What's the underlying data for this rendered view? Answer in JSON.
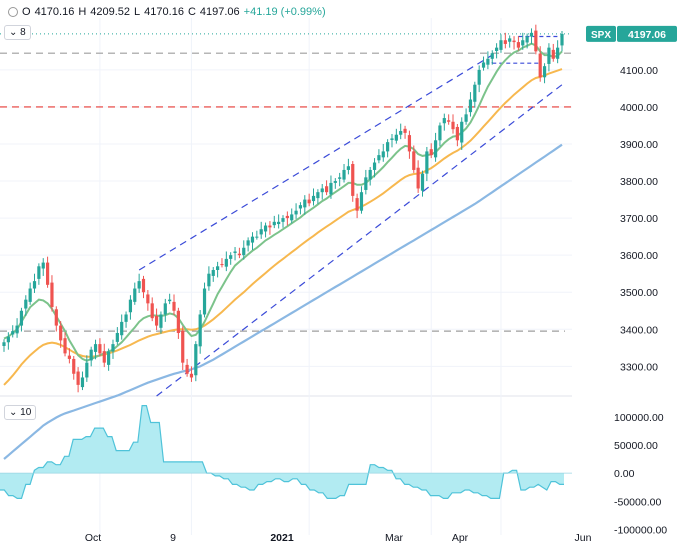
{
  "header": {
    "open_label": "O",
    "open": "4170.16",
    "high_label": "H",
    "high": "4209.52",
    "low_label": "L",
    "low": "4170.16",
    "close_label": "C",
    "close": "4197.06",
    "change": "+41.19 (+0.99%)"
  },
  "indicator_badges": {
    "top": "8",
    "bottom": "10"
  },
  "price_tag": {
    "symbol": "SPX",
    "value": "4197.06"
  },
  "colors": {
    "up": "#26a69a",
    "down": "#ef5350",
    "ma_green": "#7cc38b",
    "ma_orange": "#f7b84f",
    "ma_blue": "#8bb8e3",
    "channel": "#3b4bd8",
    "support_red": "#e53935",
    "level_gray": "#9e9e9e",
    "osc_fill": "#b2ebf2",
    "osc_line": "#4fc3d9"
  },
  "chart_data": [
    {
      "type": "candlestick",
      "series_name": "SPX",
      "y_ticks": [
        3300,
        3400,
        3500,
        3600,
        3700,
        3800,
        3900,
        4000,
        4100
      ],
      "y_tick_labels": [
        "3300.00",
        "3400.00",
        "3500.00",
        "3600.00",
        "3700.00",
        "3800.00",
        "3900.00",
        "4000.00",
        "4100.00"
      ],
      "x_tick_labels": [
        "Oct",
        "9",
        "2021",
        "Mar",
        "Apr",
        "Jun"
      ],
      "ylim": [
        3220,
        4240
      ],
      "last_price": 4197.06,
      "horizontal_levels": [
        {
          "value": 4145,
          "style": "dashed",
          "color": "gray"
        },
        {
          "value": 4000,
          "style": "dashed",
          "color": "red"
        },
        {
          "value": 3395,
          "style": "dashed",
          "color": "gray"
        }
      ],
      "closes": [
        3365,
        3380,
        3395,
        3410,
        3450,
        3480,
        3510,
        3530,
        3570,
        3580,
        3520,
        3460,
        3410,
        3370,
        3335,
        3320,
        3280,
        3250,
        3270,
        3310,
        3345,
        3360,
        3335,
        3310,
        3340,
        3360,
        3390,
        3420,
        3440,
        3480,
        3510,
        3530,
        3500,
        3470,
        3430,
        3410,
        3440,
        3470,
        3480,
        3450,
        3390,
        3310,
        3280,
        3270,
        3360,
        3440,
        3510,
        3550,
        3560,
        3570,
        3575,
        3590,
        3600,
        3610,
        3600,
        3620,
        3640,
        3650,
        3650,
        3670,
        3680,
        3675,
        3690,
        3690,
        3700,
        3700,
        3710,
        3720,
        3735,
        3750,
        3740,
        3760,
        3770,
        3780,
        3770,
        3795,
        3800,
        3810,
        3830,
        3840,
        3760,
        3720,
        3770,
        3810,
        3830,
        3850,
        3870,
        3880,
        3905,
        3915,
        3925,
        3935,
        3930,
        3880,
        3830,
        3780,
        3820,
        3880,
        3870,
        3910,
        3950,
        3970,
        3960,
        3940,
        3910,
        3960,
        3980,
        4020,
        4060,
        4100,
        4120,
        4130,
        4145,
        4160,
        4180,
        4170,
        4185,
        4175,
        4160,
        4180,
        4190,
        4200,
        4150,
        4080,
        4110,
        4160,
        4130,
        4160,
        4197
      ],
      "ma_green": [
        3375,
        3380,
        3390,
        3400,
        3420,
        3440,
        3460,
        3470,
        3480,
        3478,
        3470,
        3455,
        3435,
        3415,
        3395,
        3370,
        3350,
        3330,
        3320,
        3315,
        3320,
        3325,
        3330,
        3335,
        3340,
        3345,
        3355,
        3365,
        3378,
        3392,
        3405,
        3420,
        3430,
        3435,
        3438,
        3437,
        3436,
        3438,
        3443,
        3440,
        3430,
        3412,
        3395,
        3382,
        3385,
        3400,
        3420,
        3445,
        3470,
        3495,
        3515,
        3535,
        3555,
        3572,
        3582,
        3592,
        3602,
        3612,
        3620,
        3630,
        3640,
        3647,
        3655,
        3662,
        3670,
        3678,
        3686,
        3694,
        3702,
        3712,
        3720,
        3728,
        3737,
        3746,
        3753,
        3762,
        3770,
        3778,
        3786,
        3795,
        3795,
        3790,
        3790,
        3795,
        3805,
        3815,
        3826,
        3838,
        3851,
        3863,
        3876,
        3887,
        3895,
        3893,
        3886,
        3873,
        3868,
        3870,
        3872,
        3878,
        3890,
        3903,
        3913,
        3920,
        3922,
        3931,
        3942,
        3958,
        3980,
        4004,
        4030,
        4055,
        4075,
        4095,
        4113,
        4126,
        4138,
        4147,
        4152,
        4160,
        4165,
        4171,
        4166,
        4150,
        4140,
        4140,
        4135,
        4138,
        4150
      ],
      "ma_orange": [
        3250,
        3262,
        3275,
        3290,
        3305,
        3318,
        3330,
        3340,
        3350,
        3358,
        3362,
        3364,
        3362,
        3358,
        3352,
        3345,
        3338,
        3332,
        3328,
        3326,
        3326,
        3327,
        3329,
        3332,
        3335,
        3339,
        3343,
        3348,
        3353,
        3358,
        3364,
        3370,
        3375,
        3380,
        3384,
        3387,
        3390,
        3393,
        3396,
        3398,
        3400,
        3400,
        3400,
        3399,
        3400,
        3404,
        3410,
        3418,
        3427,
        3437,
        3447,
        3458,
        3469,
        3480,
        3490,
        3500,
        3511,
        3522,
        3532,
        3542,
        3552,
        3562,
        3572,
        3581,
        3590,
        3599,
        3608,
        3617,
        3626,
        3635,
        3644,
        3652,
        3661,
        3669,
        3677,
        3685,
        3693,
        3701,
        3709,
        3717,
        3722,
        3726,
        3731,
        3737,
        3744,
        3751,
        3759,
        3767,
        3776,
        3785,
        3794,
        3803,
        3811,
        3816,
        3819,
        3820,
        3823,
        3829,
        3835,
        3843,
        3852,
        3861,
        3869,
        3876,
        3882,
        3890,
        3899,
        3909,
        3921,
        3934,
        3947,
        3960,
        3973,
        3986,
        3999,
        4011,
        4022,
        4033,
        4043,
        4053,
        4063,
        4072,
        4078,
        4081,
        4085,
        4090,
        4094,
        4098,
        4102
      ],
      "ma_blue": [
        3050,
        3060,
        3070,
        3080,
        3090,
        3100,
        3110,
        3120,
        3130,
        3140,
        3148,
        3155,
        3162,
        3168,
        3173,
        3177,
        3181,
        3185,
        3189,
        3193,
        3197,
        3201,
        3205,
        3209,
        3213,
        3217,
        3221,
        3226,
        3231,
        3236,
        3241,
        3246,
        3251,
        3256,
        3260,
        3264,
        3268,
        3272,
        3276,
        3280,
        3283,
        3286,
        3289,
        3292,
        3296,
        3300,
        3306,
        3312,
        3318,
        3325,
        3332,
        3339,
        3346,
        3353,
        3360,
        3367,
        3374,
        3381,
        3388,
        3395,
        3402,
        3409,
        3416,
        3423,
        3430,
        3437,
        3444,
        3451,
        3458,
        3465,
        3472,
        3479,
        3486,
        3493,
        3500,
        3507,
        3514,
        3521,
        3528,
        3535,
        3542,
        3549,
        3556,
        3563,
        3570,
        3577,
        3584,
        3591,
        3598,
        3605,
        3612,
        3619,
        3626,
        3633,
        3640,
        3647,
        3654,
        3661,
        3668,
        3675,
        3682,
        3689,
        3696,
        3703,
        3710,
        3717,
        3724,
        3731,
        3738,
        3746,
        3754,
        3762,
        3770,
        3778,
        3786,
        3794,
        3802,
        3810,
        3818,
        3826,
        3834,
        3842,
        3850,
        3858,
        3866,
        3874,
        3882,
        3890,
        3898
      ]
    },
    {
      "type": "area",
      "series_name": "oscillator",
      "y_ticks": [
        100000,
        50000,
        0,
        -50000,
        -100000
      ],
      "y_tick_labels": [
        "100000.00",
        "50000.00",
        "0.00",
        "-50000.00",
        "-100000.00"
      ],
      "ylim": [
        -110000,
        130000
      ],
      "values": [
        -30000,
        -30000,
        -40000,
        -40000,
        -45000,
        -45000,
        -20000,
        -20000,
        5000,
        10000,
        10000,
        20000,
        20000,
        15000,
        15000,
        30000,
        30000,
        60000,
        60000,
        60000,
        65000,
        65000,
        80000,
        80000,
        80000,
        65000,
        65000,
        40000,
        40000,
        40000,
        40000,
        55000,
        55000,
        120000,
        120000,
        90000,
        90000,
        90000,
        20000,
        20000,
        20000,
        20000,
        20000,
        20000,
        20000,
        20000,
        20000,
        20000,
        0,
        0,
        -5000,
        -5000,
        -10000,
        -10000,
        -20000,
        -20000,
        -25000,
        -25000,
        -30000,
        -30000,
        -20000,
        -20000,
        -15000,
        -15000,
        -10000,
        -10000,
        -15000,
        -15000,
        -10000,
        -10000,
        -20000,
        -20000,
        -30000,
        -30000,
        -35000,
        -35000,
        -45000,
        -45000,
        -45000,
        -40000,
        -40000,
        -20000,
        -20000,
        -20000,
        -20000,
        -20000,
        15000,
        15000,
        10000,
        10000,
        5000,
        5000,
        -10000,
        -10000,
        -20000,
        -20000,
        -25000,
        -25000,
        -30000,
        -30000,
        -40000,
        -40000,
        -40000,
        -45000,
        -45000,
        -35000,
        -35000,
        -35000,
        -30000,
        -30000,
        -35000,
        -35000,
        -40000,
        -40000,
        -45000,
        -45000,
        -45000,
        0,
        0,
        5000,
        5000,
        -30000,
        -30000,
        -25000,
        -25000,
        -20000,
        -25000,
        -30000,
        -15000,
        -15000,
        -20000,
        -20000
      ]
    }
  ]
}
